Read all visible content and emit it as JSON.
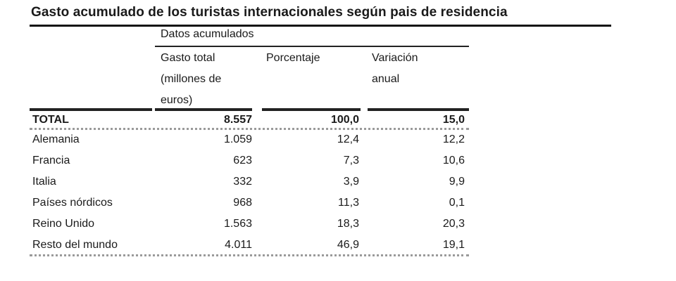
{
  "table": {
    "title": "Gasto acumulado de los turistas internacionales según pais de residencia",
    "group_header": "Datos acumulados",
    "columns": [
      [
        "Gasto total",
        "(millones de",
        "euros)"
      ],
      [
        "Porcentaje"
      ],
      [
        "Variación",
        "anual"
      ]
    ],
    "rows": [
      [
        "TOTAL",
        "8.557",
        "100,0",
        "15,0"
      ],
      [
        "Alemania",
        "1.059",
        "12,4",
        "12,2"
      ],
      [
        "Francia",
        "623",
        "7,3",
        "10,6"
      ],
      [
        "Italia",
        "332",
        "3,9",
        "9,9"
      ],
      [
        "Países nórdicos",
        "968",
        "11,3",
        "0,1"
      ],
      [
        "Reino Unido",
        "1.563",
        "18,3",
        "20,3"
      ],
      [
        "Resto del mundo",
        "4.011",
        "46,9",
        "19,1"
      ]
    ]
  }
}
